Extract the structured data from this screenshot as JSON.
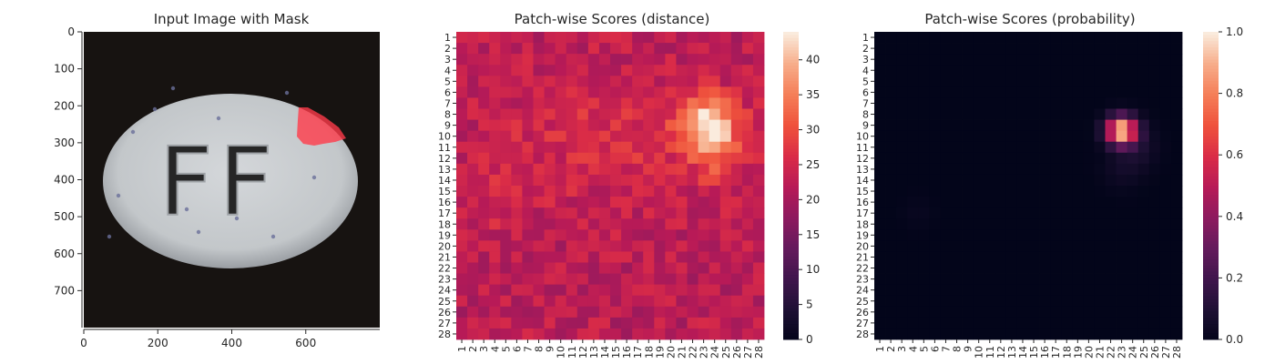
{
  "chart_data": [
    {
      "type": "image",
      "title": "Input Image with Mask",
      "xticks": [
        0,
        200,
        400,
        600
      ],
      "yticks": [
        0,
        100,
        200,
        300,
        400,
        500,
        600,
        700
      ],
      "xlim": [
        0,
        800
      ],
      "ylim": [
        800,
        0
      ],
      "image": {
        "background": "#171311",
        "pill_color": "#c9cdd0",
        "pill_edge": "#8d9196",
        "embossed_text": "FF",
        "mask_color": "#ff3b4a"
      }
    },
    {
      "type": "heatmap",
      "title": "Patch-wise Scores (distance)",
      "rows": 28,
      "cols": 28,
      "xticklabels": [
        "1",
        "2",
        "3",
        "4",
        "5",
        "6",
        "7",
        "8",
        "9",
        "10",
        "11",
        "12",
        "13",
        "14",
        "15",
        "16",
        "17",
        "18",
        "19",
        "20",
        "21",
        "22",
        "23",
        "24",
        "25",
        "26",
        "27",
        "28"
      ],
      "yticklabels": [
        "1",
        "2",
        "3",
        "4",
        "5",
        "6",
        "7",
        "8",
        "9",
        "10",
        "11",
        "12",
        "13",
        "14",
        "15",
        "16",
        "17",
        "18",
        "19",
        "20",
        "21",
        "22",
        "23",
        "24",
        "25",
        "26",
        "27",
        "28"
      ],
      "colorbar": {
        "min": 0,
        "max": 44,
        "ticks": [
          0,
          5,
          10,
          15,
          20,
          25,
          30,
          35,
          40
        ]
      },
      "colormap": "rocket",
      "hotspot": {
        "row": 9,
        "col": 23.5,
        "peak": 44
      }
    },
    {
      "type": "heatmap",
      "title": "Patch-wise Scores (probability)",
      "rows": 28,
      "cols": 28,
      "xticklabels": [
        "1",
        "2",
        "3",
        "4",
        "5",
        "6",
        "7",
        "8",
        "9",
        "10",
        "11",
        "12",
        "13",
        "14",
        "15",
        "16",
        "17",
        "18",
        "19",
        "20",
        "21",
        "22",
        "23",
        "24",
        "25",
        "26",
        "27",
        "28"
      ],
      "yticklabels": [
        "1",
        "2",
        "3",
        "4",
        "5",
        "6",
        "7",
        "8",
        "9",
        "10",
        "11",
        "12",
        "13",
        "14",
        "15",
        "16",
        "17",
        "18",
        "19",
        "20",
        "21",
        "22",
        "23",
        "24",
        "25",
        "26",
        "27",
        "28"
      ],
      "colorbar": {
        "min": 0,
        "max": 1,
        "ticks": [
          "0.0",
          "0.2",
          "0.4",
          "0.6",
          "0.8",
          "1.0"
        ]
      },
      "colormap": "rocket",
      "hotspot": {
        "row": 9.5,
        "col": 23,
        "peak": 1.0
      }
    }
  ]
}
